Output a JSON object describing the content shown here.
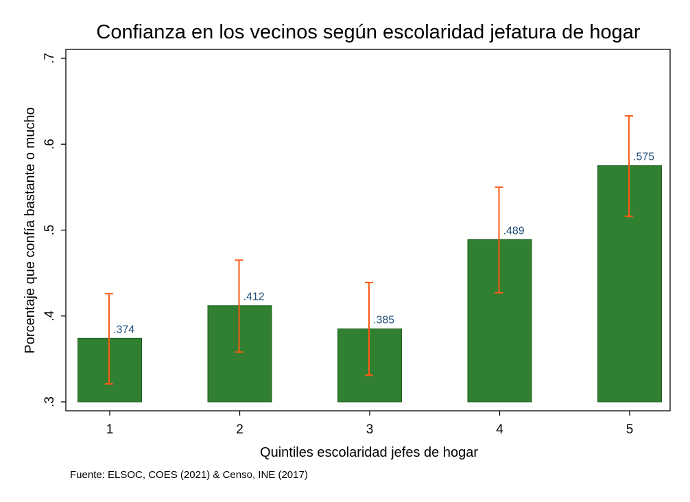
{
  "chart_data": {
    "type": "bar",
    "title": "Confianza en los vecinos según escolaridad jefatura de hogar",
    "xlabel": "Quintiles escolaridad jefes de hogar",
    "ylabel": "Porcentaje que confía bastante o mucho",
    "categories": [
      "1",
      "2",
      "3",
      "4",
      "5"
    ],
    "values": [
      0.374,
      0.412,
      0.385,
      0.489,
      0.575
    ],
    "value_labels": [
      ".374",
      ".412",
      ".385",
      ".489",
      ".575"
    ],
    "ci_low": [
      0.321,
      0.358,
      0.331,
      0.427,
      0.516
    ],
    "ci_high": [
      0.426,
      0.465,
      0.439,
      0.55,
      0.633
    ],
    "ylim": [
      0.3,
      0.7
    ],
    "yticks": [
      0.3,
      0.4,
      0.5,
      0.6,
      0.7
    ],
    "ytick_labels": [
      ".3",
      ".4",
      ".5",
      ".6",
      ".7"
    ],
    "grid": false,
    "note": "Fuente: ELSOC, COES (2021) & Censo, INE (2017)",
    "colors": {
      "bar": "#317f31",
      "bar_edge": "#1e5e1e",
      "error_bar": "#ff5a14",
      "data_label": "#1f4e79"
    }
  }
}
